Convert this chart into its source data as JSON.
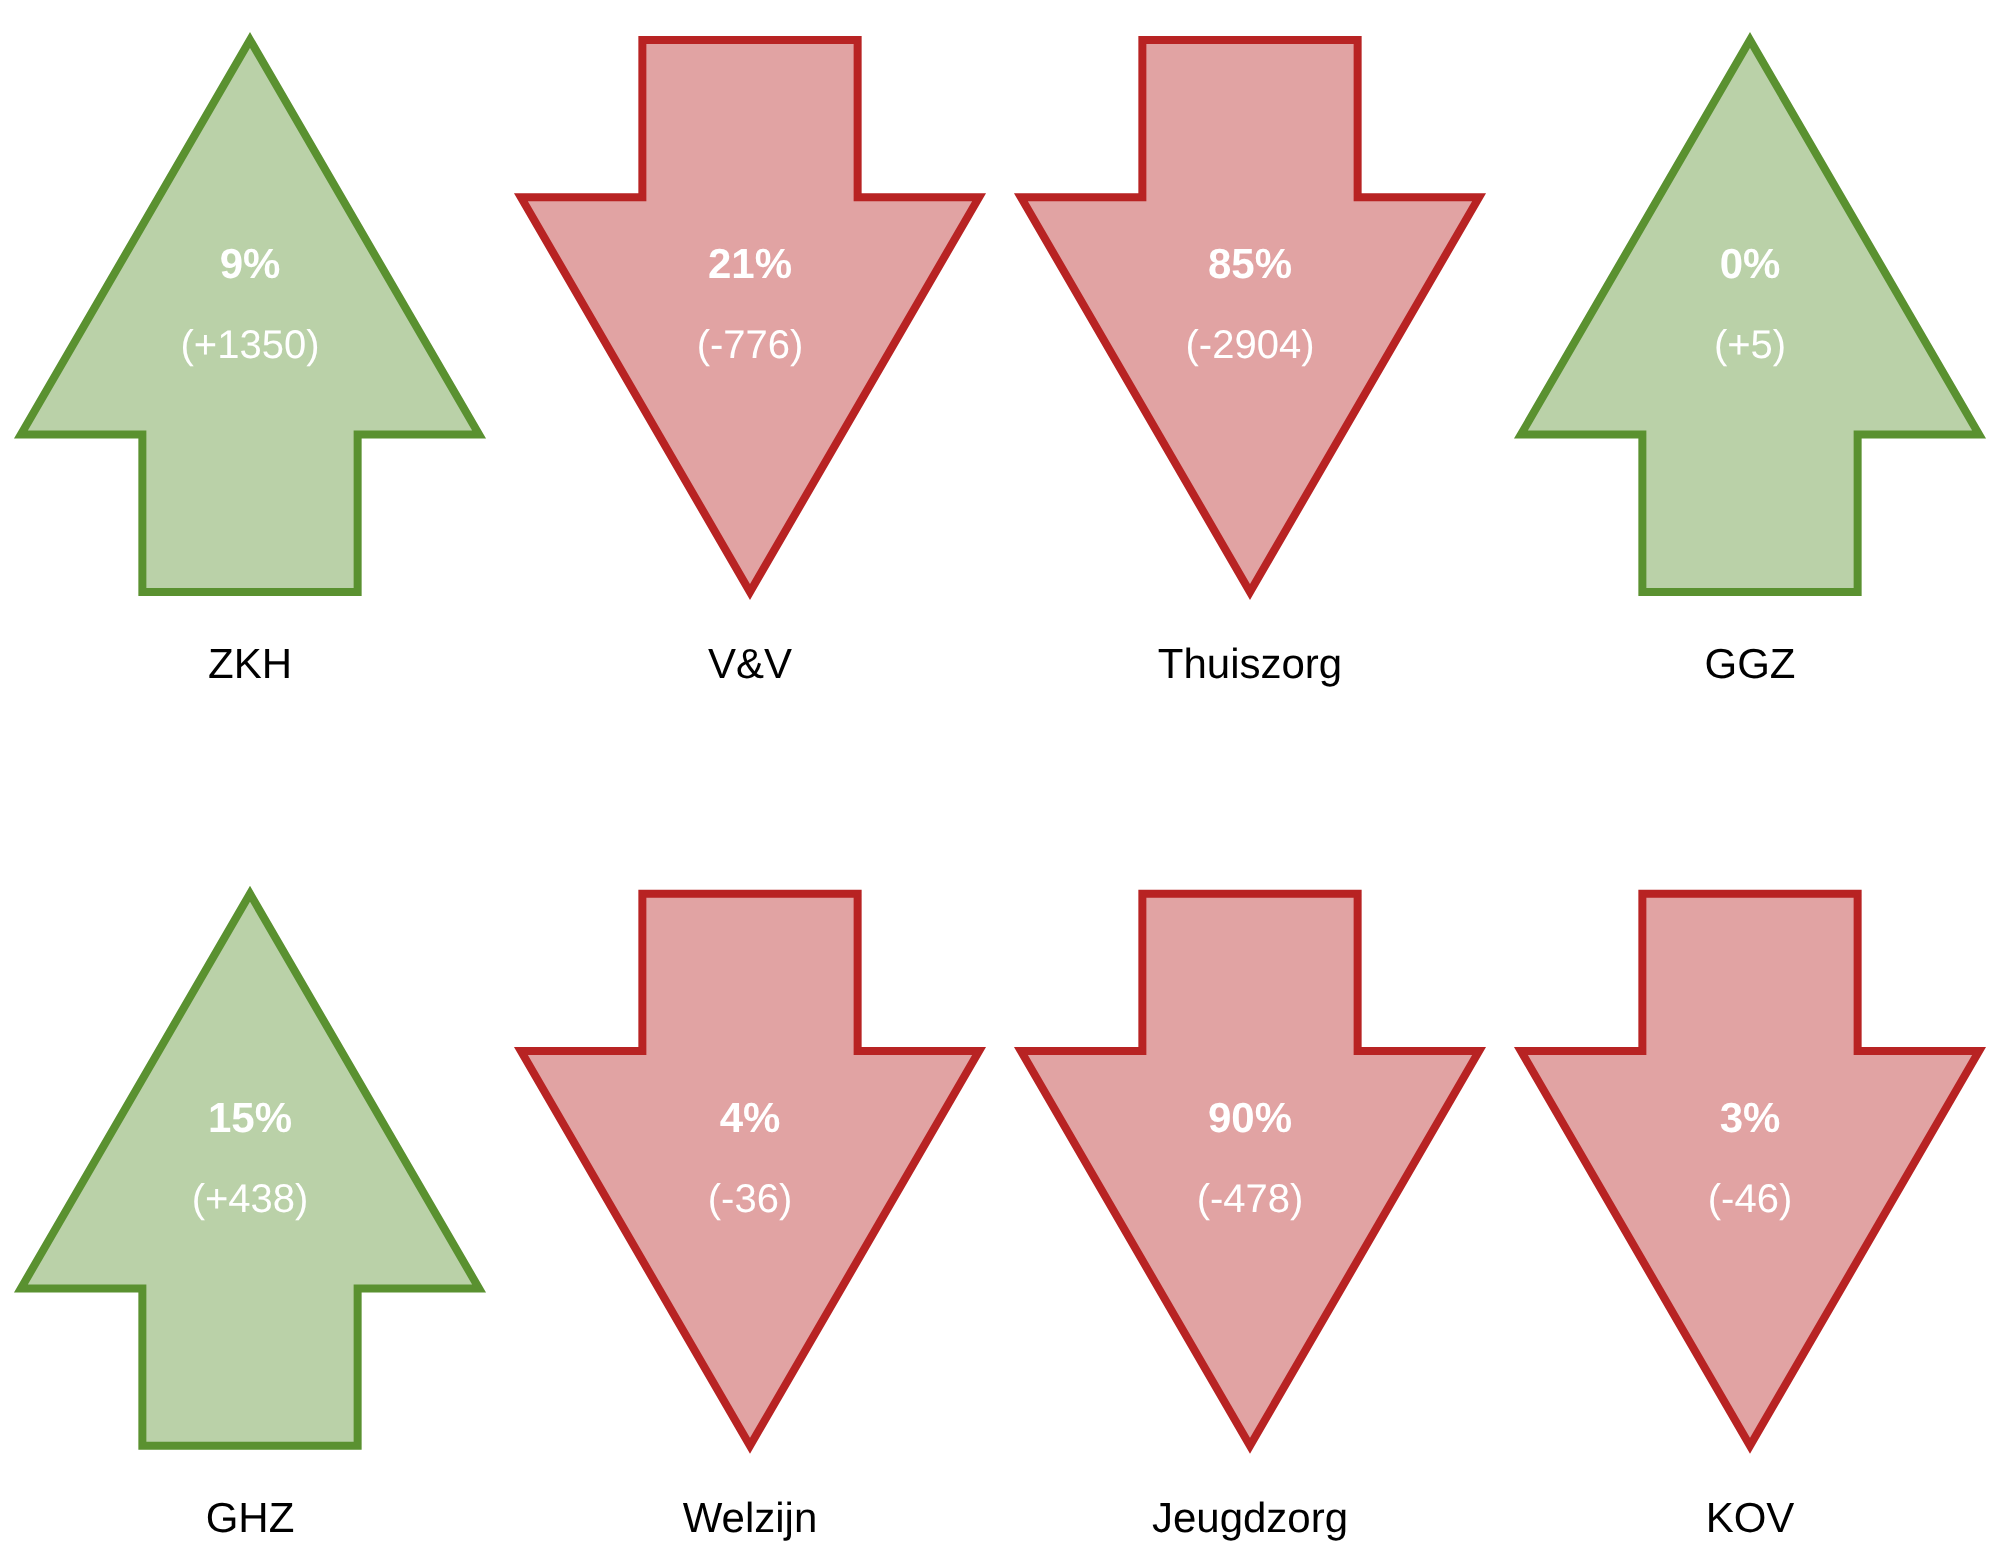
{
  "chart_data": {
    "type": "other",
    "categories": [
      "ZKH",
      "V&V",
      "Thuiszorg",
      "GGZ",
      "GHZ",
      "Welzijn",
      "Jeugdzorg",
      "KOV"
    ],
    "series": [
      {
        "values": [
          9,
          21,
          85,
          0,
          15,
          4,
          90,
          3
        ],
        "value_labels": [
          "9%",
          "21%",
          "85%",
          "0%",
          "15%",
          "4%",
          "90%",
          "3%"
        ],
        "colors": [
          "#5a9130",
          "#b82323",
          "#b82323",
          "#5a9130",
          "#5a9130",
          "#b82323",
          "#b82323",
          "#b82323"
        ]
      },
      {
        "values": [
          1350,
          -776,
          -2904,
          5,
          438,
          -36,
          -478,
          -46
        ],
        "value_labels": [
          "(+1350)",
          "(-776)",
          "(-2904)",
          "(+5)",
          "(+438)",
          "(-36)",
          "(-478)",
          "(-46)"
        ]
      }
    ]
  }
}
